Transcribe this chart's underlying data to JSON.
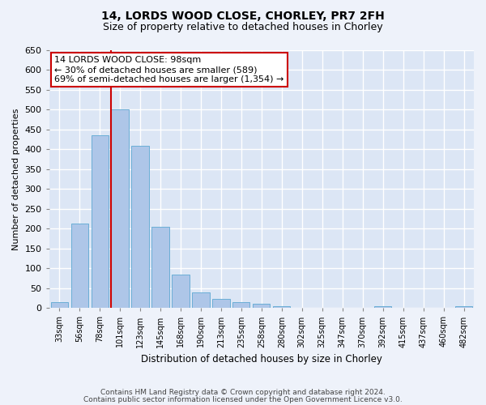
{
  "title1": "14, LORDS WOOD CLOSE, CHORLEY, PR7 2FH",
  "title2": "Size of property relative to detached houses in Chorley",
  "xlabel": "Distribution of detached houses by size in Chorley",
  "ylabel": "Number of detached properties",
  "categories": [
    "33sqm",
    "56sqm",
    "78sqm",
    "101sqm",
    "123sqm",
    "145sqm",
    "168sqm",
    "190sqm",
    "213sqm",
    "235sqm",
    "258sqm",
    "280sqm",
    "302sqm",
    "325sqm",
    "347sqm",
    "370sqm",
    "392sqm",
    "415sqm",
    "437sqm",
    "460sqm",
    "482sqm"
  ],
  "values": [
    15,
    213,
    435,
    500,
    408,
    205,
    85,
    40,
    22,
    15,
    10,
    5,
    0,
    0,
    0,
    0,
    5,
    0,
    0,
    0,
    5
  ],
  "bar_color": "#aec6e8",
  "bar_edge_color": "#6baed6",
  "highlight_bar_index": 3,
  "highlight_color": "#cc0000",
  "annotation_text": "14 LORDS WOOD CLOSE: 98sqm\n← 30% of detached houses are smaller (589)\n69% of semi-detached houses are larger (1,354) →",
  "annotation_box_color": "#ffffff",
  "annotation_box_edge_color": "#cc0000",
  "bg_color": "#dce6f5",
  "fig_bg_color": "#eef2fa",
  "grid_color": "#ffffff",
  "ylim": [
    0,
    650
  ],
  "yticks": [
    0,
    50,
    100,
    150,
    200,
    250,
    300,
    350,
    400,
    450,
    500,
    550,
    600,
    650
  ],
  "footer1": "Contains HM Land Registry data © Crown copyright and database right 2024.",
  "footer2": "Contains public sector information licensed under the Open Government Licence v3.0."
}
